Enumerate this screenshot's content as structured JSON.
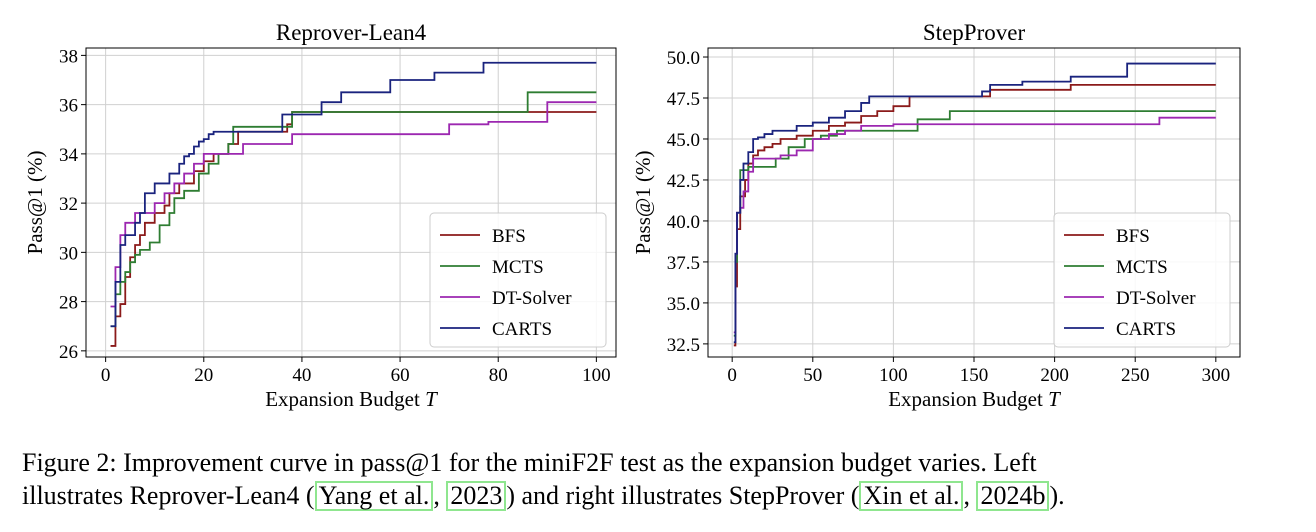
{
  "chart_data": [
    {
      "type": "line",
      "title": "Reprover-Lean4",
      "xlabel_text": "Expansion Budget ",
      "xlabel_var": "T",
      "ylabel": "Pass@1 (%)",
      "xlim": [
        -4,
        104
      ],
      "ylim": [
        25.75,
        38.3
      ],
      "xticks": [
        0,
        20,
        40,
        60,
        80,
        100
      ],
      "yticks": [
        26,
        28,
        30,
        32,
        34,
        36,
        38
      ],
      "ytick_labels": [
        "26",
        "28",
        "30",
        "32",
        "34",
        "36",
        "38"
      ],
      "grid": true,
      "legend_position": "lower-right",
      "series": [
        {
          "name": "BFS",
          "color": "#8b1a1a",
          "x": [
            1,
            2,
            3,
            4,
            5,
            6,
            7,
            8,
            10,
            12,
            13,
            15,
            18,
            20,
            22,
            25,
            27,
            33,
            37,
            38,
            100
          ],
          "y": [
            26.2,
            27.4,
            27.9,
            29.0,
            29.8,
            30.3,
            30.7,
            31.2,
            31.6,
            31.9,
            32.4,
            32.8,
            33.3,
            33.7,
            34.0,
            34.4,
            34.9,
            34.9,
            35.2,
            35.7,
            35.7
          ]
        },
        {
          "name": "MCTS",
          "color": "#2e7d32",
          "x": [
            1,
            2,
            3,
            4,
            5,
            6,
            7,
            9,
            11,
            13,
            14,
            16,
            19,
            21,
            23,
            25,
            26,
            35,
            38,
            72,
            86,
            100
          ],
          "y": [
            27.0,
            28.3,
            28.8,
            29.2,
            29.6,
            29.9,
            30.1,
            30.4,
            31.1,
            31.6,
            32.2,
            32.5,
            33.2,
            33.6,
            34.0,
            34.4,
            35.1,
            35.1,
            35.7,
            35.7,
            36.5,
            36.5
          ]
        },
        {
          "name": "DT-Solver",
          "color": "#9c27b0",
          "x": [
            1,
            2,
            3,
            4,
            6,
            8,
            10,
            12,
            14,
            16,
            18,
            20,
            22,
            24,
            28,
            37,
            38,
            62,
            70,
            78,
            90,
            100
          ],
          "y": [
            27.8,
            29.4,
            30.7,
            31.2,
            31.6,
            31.6,
            32.0,
            32.4,
            32.8,
            33.2,
            33.6,
            34.0,
            34.0,
            34.0,
            34.4,
            34.4,
            34.8,
            34.8,
            35.2,
            35.3,
            36.1,
            36.1
          ]
        },
        {
          "name": "CARTS",
          "color": "#1a237e",
          "x": [
            1,
            2,
            3,
            4,
            5,
            6,
            7,
            8,
            10,
            11,
            13,
            15,
            16,
            17,
            18,
            19,
            20,
            21,
            22,
            25,
            33,
            36,
            38,
            44,
            48,
            51,
            58,
            67,
            71,
            77,
            100
          ],
          "y": [
            27.0,
            28.8,
            30.3,
            30.7,
            30.7,
            31.2,
            31.6,
            32.4,
            32.8,
            32.8,
            33.2,
            33.6,
            33.9,
            34.0,
            34.3,
            34.5,
            34.6,
            34.8,
            34.9,
            34.9,
            34.9,
            35.6,
            35.6,
            36.1,
            36.5,
            36.5,
            37.0,
            37.3,
            37.3,
            37.7,
            37.7
          ]
        }
      ]
    },
    {
      "type": "line",
      "title": "StepProver",
      "xlabel_text": "Expansion Budget ",
      "xlabel_var": "T",
      "ylabel": "Pass@1 (%)",
      "xlim": [
        -15,
        315
      ],
      "ylim": [
        31.7,
        50.55
      ],
      "xticks": [
        0,
        50,
        100,
        150,
        200,
        250,
        300
      ],
      "yticks": [
        32.5,
        35,
        37.5,
        40,
        42.5,
        45,
        47.5,
        50
      ],
      "ytick_labels": [
        "32.5",
        "35.0",
        "37.5",
        "40.0",
        "42.5",
        "45.0",
        "47.5",
        "50.0"
      ],
      "grid": true,
      "legend_position": "lower-right",
      "series": [
        {
          "name": "BFS",
          "color": "#8b1a1a",
          "x": [
            1,
            2,
            3,
            5,
            8,
            10,
            13,
            16,
            20,
            25,
            30,
            40,
            50,
            60,
            70,
            80,
            90,
            100,
            110,
            150,
            160,
            170,
            210,
            300
          ],
          "y": [
            32.4,
            36.0,
            39.5,
            41.5,
            42.5,
            43.5,
            44.0,
            44.3,
            44.5,
            44.7,
            45.0,
            45.2,
            45.5,
            45.8,
            46.0,
            46.4,
            46.7,
            47.0,
            47.6,
            47.6,
            48.0,
            48.0,
            48.3,
            48.3
          ]
        },
        {
          "name": "MCTS",
          "color": "#2e7d32",
          "x": [
            1,
            2,
            3,
            5,
            7,
            10,
            15,
            20,
            27,
            35,
            45,
            55,
            65,
            80,
            115,
            135,
            300
          ],
          "y": [
            33.0,
            37.5,
            40.5,
            43.1,
            43.1,
            43.3,
            43.3,
            43.3,
            43.8,
            44.5,
            45.0,
            45.2,
            45.5,
            45.5,
            46.2,
            46.7,
            46.7
          ]
        },
        {
          "name": "DT-Solver",
          "color": "#9c27b0",
          "x": [
            1,
            2,
            3,
            5,
            7,
            10,
            13,
            17,
            20,
            25,
            30,
            40,
            50,
            60,
            70,
            80,
            100,
            180,
            265,
            300
          ],
          "y": [
            33.2,
            38.0,
            40.5,
            40.8,
            41.8,
            43.0,
            43.8,
            43.8,
            43.8,
            43.8,
            44.0,
            44.3,
            45.0,
            45.3,
            45.5,
            45.8,
            45.9,
            45.9,
            46.3,
            46.3
          ]
        },
        {
          "name": "CARTS",
          "color": "#1a237e",
          "x": [
            1,
            2,
            3,
            5,
            7,
            10,
            13,
            16,
            20,
            25,
            40,
            50,
            60,
            70,
            80,
            85,
            150,
            155,
            160,
            180,
            210,
            245,
            300
          ],
          "y": [
            32.6,
            38.0,
            40.5,
            42.5,
            43.5,
            44.2,
            45.0,
            45.1,
            45.3,
            45.5,
            45.8,
            46.0,
            46.3,
            46.7,
            47.2,
            47.6,
            47.6,
            47.9,
            48.3,
            48.5,
            48.8,
            49.6,
            49.6
          ]
        }
      ]
    }
  ],
  "caption": {
    "line1": "Figure 2: Improvement curve in pass@1 for the miniF2F test as the expansion budget varies. Left",
    "line2_a": "illustrates Reprover-Lean4 (",
    "cite1": "Yang et al.",
    "sep1": ", ",
    "cite2": "2023",
    "line2_b": ") and right illustrates StepProver (",
    "cite3": "Xin et al.",
    "sep2": ", ",
    "cite4": "2024b",
    "line2_c": ")."
  }
}
